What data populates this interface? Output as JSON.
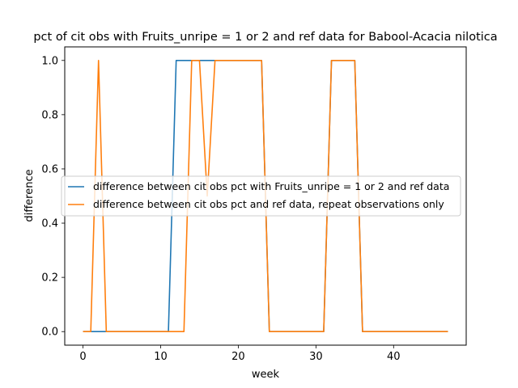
{
  "chart_data": {
    "type": "line",
    "title": "pct of cit obs with Fruits_unripe = 1 or 2 and ref data for Babool-Acacia nilotica",
    "xlabel": "week",
    "ylabel": "difference",
    "xlim": [
      -2.35,
      49.35
    ],
    "ylim": [
      -0.05,
      1.05
    ],
    "xticks": [
      0,
      10,
      20,
      30,
      40
    ],
    "yticks": [
      0.0,
      0.2,
      0.4,
      0.6,
      0.8,
      1.0
    ],
    "grid": false,
    "legend_position": "center-right",
    "x": [
      0,
      1,
      2,
      3,
      4,
      5,
      6,
      7,
      8,
      9,
      10,
      11,
      12,
      13,
      14,
      15,
      16,
      17,
      18,
      19,
      20,
      21,
      22,
      23,
      24,
      25,
      26,
      27,
      28,
      29,
      30,
      31,
      32,
      33,
      34,
      35,
      36,
      37,
      38,
      39,
      40,
      41,
      42,
      43,
      44,
      45,
      46,
      47
    ],
    "series": [
      {
        "name": "difference between cit obs pct with Fruits_unripe = 1 or 2 and ref data",
        "color": "#1f77b4",
        "values": [
          0,
          0,
          0,
          0,
          0,
          0,
          0,
          0,
          0,
          0,
          0,
          0,
          1,
          1,
          1,
          1,
          1,
          1,
          1,
          1,
          1,
          1,
          1,
          1,
          0,
          0,
          0,
          0,
          0,
          0,
          0,
          0,
          1,
          1,
          1,
          1,
          0,
          0,
          0,
          0,
          0,
          0,
          0,
          0,
          0,
          0,
          0,
          0
        ]
      },
      {
        "name": "difference between cit obs pct and ref data, repeat observations only",
        "color": "#ff7f0e",
        "values": [
          0,
          0,
          1,
          0,
          0,
          0,
          0,
          0,
          0,
          0,
          0,
          0,
          0,
          0,
          1,
          1,
          0.5,
          1,
          1,
          1,
          1,
          1,
          1,
          1,
          0,
          0,
          0,
          0,
          0,
          0,
          0,
          0,
          1,
          1,
          1,
          1,
          0,
          0,
          0,
          0,
          0,
          0,
          0,
          0,
          0,
          0,
          0,
          0
        ]
      }
    ]
  }
}
